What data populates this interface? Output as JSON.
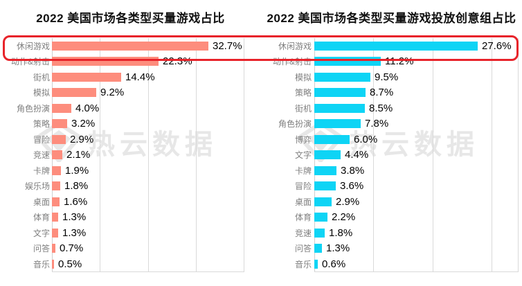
{
  "watermark": {
    "text": "热云数据"
  },
  "highlight": {
    "highlighted_category": "休闲游戏",
    "color": "#e8232a"
  },
  "chart_data": [
    {
      "type": "bar",
      "orientation": "horizontal",
      "title": "2022 美国市场各类型买量游戏占比",
      "bar_color": "#fd8d7d",
      "value_suffix": "%",
      "xlim": [
        0,
        40
      ],
      "scale_max": 40,
      "grid_lines_pct": [
        10,
        20,
        30,
        40
      ],
      "grid_on": true,
      "legend": "none",
      "categories": [
        "休闲游戏",
        "动作&射击",
        "街机",
        "模拟",
        "角色扮演",
        "策略",
        "冒险",
        "竞速",
        "卡牌",
        "娱乐场",
        "桌面",
        "体育",
        "文字",
        "问答",
        "音乐"
      ],
      "values": [
        32.7,
        22.3,
        14.4,
        9.2,
        4.0,
        3.2,
        2.9,
        2.1,
        1.9,
        1.8,
        1.6,
        1.3,
        1.3,
        0.7,
        0.5
      ]
    },
    {
      "type": "bar",
      "orientation": "horizontal",
      "title": "2022 美国市场各类型买量游戏投放创意组占比",
      "bar_color": "#0ed4f5",
      "value_suffix": "%",
      "xlim": [
        0,
        34.4
      ],
      "scale_max": 34.4,
      "grid_lines_pct": [
        10,
        20,
        30,
        34.4
      ],
      "grid_on": true,
      "legend": "none",
      "categories": [
        "休闲游戏",
        "动作&射击",
        "模拟",
        "策略",
        "街机",
        "角色扮演",
        "博弈",
        "文字",
        "卡牌",
        "冒险",
        "桌面",
        "体育",
        "竞速",
        "问答",
        "音乐"
      ],
      "values": [
        27.6,
        11.2,
        9.5,
        8.7,
        8.5,
        7.8,
        6.0,
        4.4,
        3.8,
        3.6,
        2.9,
        2.2,
        1.8,
        1.3,
        0.6
      ]
    }
  ]
}
